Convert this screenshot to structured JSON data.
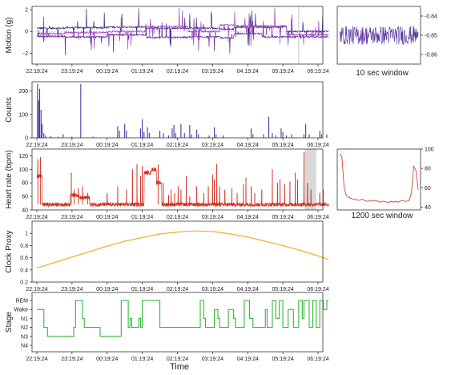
{
  "chart_data": [
    {
      "id": "motion",
      "type": "line",
      "ylabel": "Motion (g)",
      "xlabel": "",
      "ylim": [
        -3,
        2.3
      ],
      "yticks": [
        -2,
        0,
        2
      ],
      "x_ticks": [
        "22:19:24",
        "23:19:24",
        "00:19:24",
        "01:19:24",
        "02:19:24",
        "03:19:24",
        "04:19:24",
        "05:19:24",
        "06:19:24"
      ],
      "x_hours": [
        0,
        8.3
      ],
      "series": [
        {
          "axis": "x",
          "color": "#3b2a8a",
          "baseline": 0.4
        },
        {
          "axis": "y",
          "color": "#6a2ba0",
          "baseline": -0.5
        },
        {
          "axis": "z",
          "color": "#a040c0",
          "baseline": -0.15
        }
      ],
      "segments": [
        {
          "from_hour": 0.0,
          "to_hour": 0.8,
          "x": 0.3,
          "y": -0.45,
          "z": -0.2
        },
        {
          "from_hour": 0.8,
          "to_hour": 2.0,
          "x": 0.35,
          "y": -0.5,
          "z": -0.1
        },
        {
          "from_hour": 2.0,
          "to_hour": 3.1,
          "x": 0.4,
          "y": -0.3,
          "z": 0.0
        },
        {
          "from_hour": 3.1,
          "to_hour": 4.3,
          "x": 0.3,
          "y": -0.55,
          "z": 0.45
        },
        {
          "from_hour": 4.3,
          "to_hour": 5.2,
          "x": 0.3,
          "y": -0.5,
          "z": 0.0
        },
        {
          "from_hour": 5.2,
          "to_hour": 5.6,
          "x": 0.2,
          "y": -0.6,
          "z": 0.6
        },
        {
          "from_hour": 5.6,
          "to_hour": 6.4,
          "x": 0.4,
          "y": -0.2,
          "z": 0.5
        },
        {
          "from_hour": 6.4,
          "to_hour": 7.1,
          "x": 0.4,
          "y": -0.5,
          "z": 0.5
        },
        {
          "from_hour": 7.1,
          "to_hour": 8.3,
          "x": 0.0,
          "y": -0.5,
          "z": -0.3
        }
      ],
      "highlight_window": [
        7.45,
        7.47
      ]
    },
    {
      "id": "motion_zoom",
      "type": "line",
      "caption": "10 sec window",
      "ylim": [
        -0.865,
        -0.835
      ],
      "yticks": [
        -0.84,
        -0.85,
        -0.86
      ],
      "mean": -0.85,
      "amplitude": 0.005,
      "color": "#5b3aa0"
    },
    {
      "id": "counts",
      "type": "bar",
      "ylabel": "Counts",
      "ylim": [
        0,
        240
      ],
      "yticks": [
        0,
        100,
        200
      ],
      "x_ticks": [
        "22:19:24",
        "23:19:24",
        "00:19:24",
        "01:19:24",
        "02:19:24",
        "03:19:24",
        "04:19:24",
        "05:19:24",
        "06:19:24"
      ],
      "color": "#3b3aa0",
      "bars": [
        [
          0.02,
          230
        ],
        [
          0.05,
          160
        ],
        [
          0.08,
          210
        ],
        [
          0.12,
          120
        ],
        [
          0.15,
          60
        ],
        [
          0.2,
          20
        ],
        [
          0.25,
          10
        ],
        [
          0.4,
          8
        ],
        [
          0.6,
          5
        ],
        [
          0.75,
          15
        ],
        [
          1.0,
          5
        ],
        [
          1.25,
          230
        ],
        [
          1.6,
          5
        ],
        [
          2.3,
          50
        ],
        [
          2.35,
          30
        ],
        [
          2.5,
          60
        ],
        [
          2.55,
          30
        ],
        [
          2.95,
          40
        ],
        [
          3.0,
          80
        ],
        [
          3.05,
          25
        ],
        [
          3.15,
          45
        ],
        [
          3.2,
          20
        ],
        [
          3.5,
          30
        ],
        [
          3.6,
          20
        ],
        [
          3.75,
          10
        ],
        [
          3.85,
          40
        ],
        [
          3.9,
          55
        ],
        [
          3.95,
          20
        ],
        [
          4.1,
          60
        ],
        [
          4.2,
          20
        ],
        [
          4.35,
          55
        ],
        [
          4.4,
          15
        ],
        [
          4.55,
          35
        ],
        [
          4.6,
          15
        ],
        [
          4.9,
          10
        ],
        [
          5.05,
          45
        ],
        [
          5.1,
          15
        ],
        [
          5.3,
          10
        ],
        [
          6.1,
          40
        ],
        [
          6.15,
          15
        ],
        [
          6.45,
          15
        ],
        [
          6.6,
          90
        ],
        [
          6.7,
          20
        ],
        [
          6.8,
          10
        ],
        [
          6.95,
          40
        ],
        [
          7.0,
          25
        ],
        [
          7.1,
          10
        ],
        [
          7.25,
          15
        ],
        [
          7.6,
          15
        ],
        [
          7.65,
          60
        ],
        [
          7.75,
          15
        ],
        [
          8.05,
          30
        ],
        [
          8.1,
          15
        ],
        [
          8.25,
          15
        ]
      ]
    },
    {
      "id": "heart_rate",
      "type": "line",
      "ylabel": "Heart rate (bpm)",
      "ylim": [
        40,
        130
      ],
      "yticks": [
        40,
        60,
        80,
        100,
        120
      ],
      "x_ticks": [
        "22:19:24",
        "23:19:24",
        "00:19:24",
        "01:19:24",
        "02:19:24",
        "03:19:24",
        "04:19:24",
        "05:19:24",
        "06:19:24"
      ],
      "color": "#d03020",
      "baseline": 48,
      "elevated": [
        {
          "from_hour": 0.0,
          "to_hour": 0.15,
          "level": 90
        },
        {
          "from_hour": 0.95,
          "to_hour": 1.2,
          "level": 62
        },
        {
          "from_hour": 1.2,
          "to_hour": 1.5,
          "level": 58
        },
        {
          "from_hour": 3.05,
          "to_hour": 3.25,
          "level": 95
        },
        {
          "from_hour": 3.25,
          "to_hour": 3.4,
          "level": 100
        },
        {
          "from_hour": 3.4,
          "to_hour": 3.55,
          "level": 80
        }
      ],
      "spikes": [
        [
          0.03,
          115
        ],
        [
          0.1,
          118
        ],
        [
          0.98,
          95
        ],
        [
          1.06,
          70
        ],
        [
          1.18,
          72
        ],
        [
          1.3,
          75
        ],
        [
          1.45,
          65
        ],
        [
          2.0,
          65
        ],
        [
          2.3,
          75
        ],
        [
          2.55,
          70
        ],
        [
          2.72,
          100
        ],
        [
          2.85,
          108
        ],
        [
          2.95,
          90
        ],
        [
          3.0,
          105
        ],
        [
          3.45,
          107
        ],
        [
          3.6,
          80
        ],
        [
          3.75,
          62
        ],
        [
          3.82,
          70
        ],
        [
          3.92,
          65
        ],
        [
          4.02,
          75
        ],
        [
          4.1,
          70
        ],
        [
          4.25,
          90
        ],
        [
          4.35,
          60
        ],
        [
          4.55,
          75
        ],
        [
          4.75,
          65
        ],
        [
          4.88,
          75
        ],
        [
          5.0,
          92
        ],
        [
          5.05,
          85
        ],
        [
          5.12,
          108
        ],
        [
          5.2,
          75
        ],
        [
          5.35,
          70
        ],
        [
          5.55,
          72
        ],
        [
          5.7,
          65
        ],
        [
          5.88,
          78
        ],
        [
          5.95,
          88
        ],
        [
          6.1,
          75
        ],
        [
          6.2,
          65
        ],
        [
          6.4,
          70
        ],
        [
          6.7,
          100
        ],
        [
          6.85,
          80
        ],
        [
          6.92,
          85
        ],
        [
          7.05,
          78
        ],
        [
          7.2,
          82
        ],
        [
          7.35,
          95
        ],
        [
          7.42,
          85
        ],
        [
          7.6,
          125
        ],
        [
          7.7,
          80
        ],
        [
          7.8,
          70
        ],
        [
          8.05,
          65
        ],
        [
          8.15,
          70
        ]
      ],
      "highlight_window": [
        7.62,
        7.95
      ]
    },
    {
      "id": "heart_rate_zoom",
      "type": "line",
      "caption": "1200 sec window",
      "ylim": [
        37,
        100
      ],
      "yticks": [
        40,
        60,
        80,
        100
      ],
      "color": "#d03020",
      "y": [
        95,
        92,
        60,
        52,
        50,
        49,
        48,
        48,
        47,
        47,
        48,
        47,
        46,
        46,
        47,
        46,
        47,
        46,
        45,
        46,
        46,
        45,
        45,
        46,
        45,
        46,
        45,
        46,
        47,
        46,
        46,
        47,
        55,
        82,
        78,
        58
      ]
    },
    {
      "id": "clock_proxy",
      "type": "line",
      "ylabel": "Clock Proxy",
      "ylim": [
        0.2,
        1.2
      ],
      "yticks": [
        0.2,
        0.4,
        0.6,
        0.8,
        1.0
      ],
      "x_ticks": [
        "22:19:24",
        "23:19:24",
        "00:19:24",
        "01:19:24",
        "02:19:24",
        "03:19:24",
        "04:19:24",
        "05:19:24",
        "06:19:24"
      ],
      "color": "#f0b020",
      "x": [
        0,
        0.5,
        1,
        1.5,
        2,
        2.5,
        3,
        3.5,
        4,
        4.5,
        5,
        5.5,
        6,
        6.5,
        7,
        7.5,
        8,
        8.3
      ],
      "y": [
        0.43,
        0.52,
        0.61,
        0.7,
        0.79,
        0.87,
        0.93,
        0.99,
        1.02,
        1.04,
        1.03,
        0.99,
        0.94,
        0.87,
        0.8,
        0.72,
        0.63,
        0.57
      ]
    },
    {
      "id": "stage",
      "type": "line",
      "ylabel": "Stage",
      "xlabel": "Time",
      "y_categories": [
        "REM",
        "Wake",
        "N1",
        "N2",
        "N3",
        "N4"
      ],
      "x_ticks": [
        "22:19:24",
        "23:19:24",
        "00:19:24",
        "01:19:24",
        "02:19:24",
        "03:19:24",
        "04:19:24",
        "05:19:24",
        "06:19:24"
      ],
      "color": "#20b020",
      "steps": [
        [
          0.0,
          "Wake"
        ],
        [
          0.2,
          "N2"
        ],
        [
          0.3,
          "N3"
        ],
        [
          1.05,
          "N2"
        ],
        [
          1.1,
          "REM"
        ],
        [
          1.3,
          "N1"
        ],
        [
          1.35,
          "N2"
        ],
        [
          1.8,
          "N3"
        ],
        [
          2.4,
          "REM"
        ],
        [
          2.6,
          "N2"
        ],
        [
          2.65,
          "N1"
        ],
        [
          2.7,
          "N2"
        ],
        [
          2.9,
          "N1"
        ],
        [
          2.95,
          "N2"
        ],
        [
          3.0,
          "REM"
        ],
        [
          3.5,
          "N2"
        ],
        [
          4.65,
          "REM"
        ],
        [
          4.75,
          "N1"
        ],
        [
          4.8,
          "N2"
        ],
        [
          5.05,
          "Wake"
        ],
        [
          5.15,
          "N1"
        ],
        [
          5.2,
          "N2"
        ],
        [
          5.45,
          "Wake"
        ],
        [
          5.6,
          "N1"
        ],
        [
          5.65,
          "N2"
        ],
        [
          5.9,
          "REM"
        ],
        [
          6.05,
          "N1"
        ],
        [
          6.15,
          "N2"
        ],
        [
          6.5,
          "Wake"
        ],
        [
          6.55,
          "N2"
        ],
        [
          6.7,
          "REM"
        ],
        [
          6.8,
          "N1"
        ],
        [
          6.9,
          "REM"
        ],
        [
          7.0,
          "N2"
        ],
        [
          7.15,
          "Wake"
        ],
        [
          7.3,
          "N2"
        ],
        [
          7.45,
          "REM"
        ],
        [
          7.55,
          "N1"
        ],
        [
          7.6,
          "REM"
        ],
        [
          7.75,
          "N2"
        ],
        [
          7.85,
          "REM"
        ],
        [
          7.95,
          "N2"
        ],
        [
          8.05,
          "REM"
        ],
        [
          8.15,
          "Wake"
        ],
        [
          8.25,
          "REM"
        ],
        [
          8.3,
          "REM"
        ]
      ]
    }
  ]
}
